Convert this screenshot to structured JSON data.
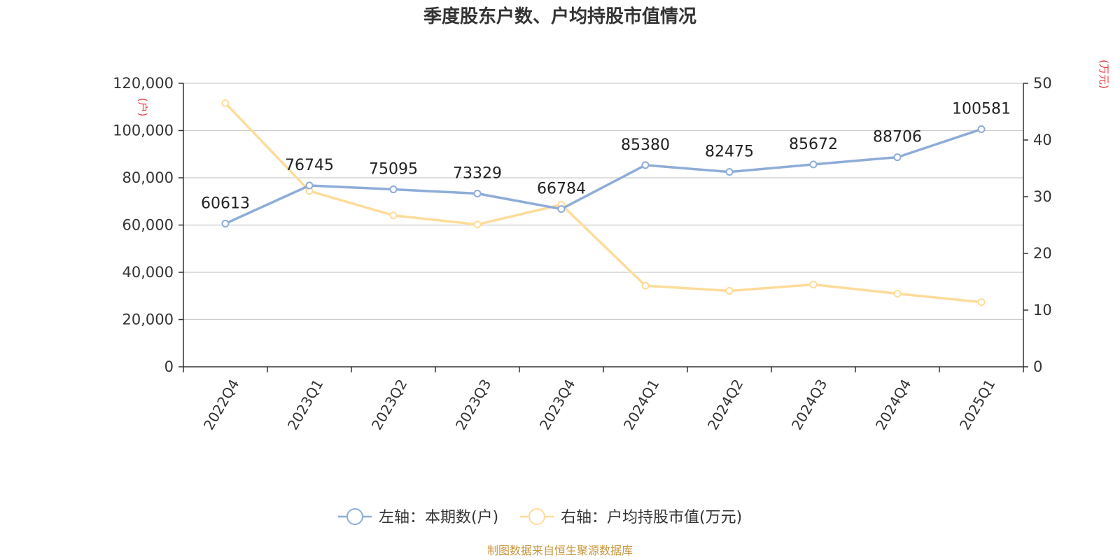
{
  "chart_data": {
    "type": "line",
    "title": "季度股东户数、户均持股市值情况",
    "categories": [
      "2022Q4",
      "2023Q1",
      "2023Q2",
      "2023Q3",
      "2023Q4",
      "2024Q1",
      "2024Q2",
      "2024Q3",
      "2024Q4",
      "2025Q1"
    ],
    "left_axis": {
      "unit": "(户)",
      "ylim": [
        0,
        120000
      ],
      "ticks": [
        "0",
        "20,000",
        "40,000",
        "60,000",
        "80,000",
        "100,000",
        "120,000"
      ],
      "tick_values": [
        0,
        20000,
        40000,
        60000,
        80000,
        100000,
        120000
      ]
    },
    "right_axis": {
      "unit": "(万元)",
      "ylim": [
        0,
        50
      ],
      "ticks": [
        "0",
        "10",
        "20",
        "30",
        "40",
        "50"
      ],
      "tick_values": [
        0,
        10,
        20,
        30,
        40,
        50
      ]
    },
    "series": [
      {
        "name": "左轴：本期数(户)",
        "axis": "left",
        "color": "#8eacd8",
        "values": [
          60613,
          76745,
          75095,
          73329,
          66784,
          85380,
          82475,
          85672,
          88706,
          100581
        ],
        "labels": [
          "60613",
          "76745",
          "75095",
          "73329",
          "66784",
          "85380",
          "82475",
          "85672",
          "88706",
          "100581"
        ]
      },
      {
        "name": "右轴：户均持股市值(万元)",
        "axis": "right",
        "color": "#fddc9a",
        "values": [
          46.5,
          31.0,
          26.7,
          25.1,
          28.6,
          14.3,
          13.4,
          14.5,
          12.9,
          11.4
        ]
      }
    ],
    "grid": true,
    "legend_position": "bottom"
  },
  "source_text": "制图数据来自恒生聚源数据库"
}
